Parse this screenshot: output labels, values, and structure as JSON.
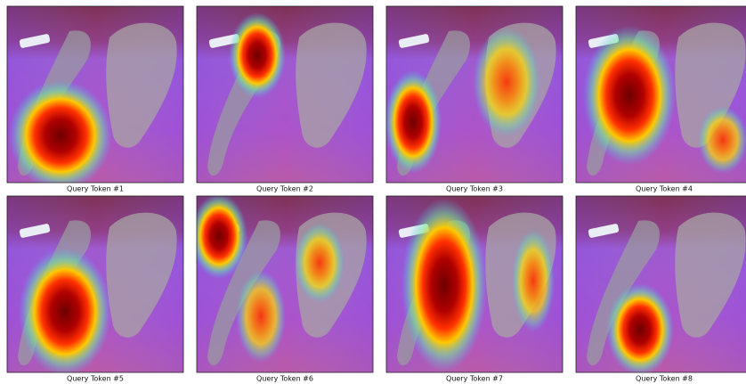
{
  "panels": [
    {
      "caption": "Query Token #1"
    },
    {
      "caption": "Query Token #2"
    },
    {
      "caption": "Query Token #3"
    },
    {
      "caption": "Query Token #4"
    },
    {
      "caption": "Query Token #5"
    },
    {
      "caption": "Query Token #6"
    },
    {
      "caption": "Query Token #7"
    },
    {
      "caption": "Query Token #8"
    }
  ]
}
